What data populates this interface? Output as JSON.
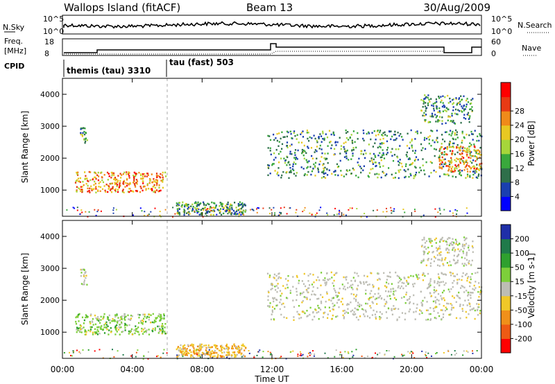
{
  "header": {
    "station": "Wallops Island (fitACF)",
    "beam": "Beam 13",
    "date": "30/Aug/2009"
  },
  "top_panels": {
    "nsky_label": "N.Sky",
    "nsky_ticks": [
      "10^5",
      "10^0"
    ],
    "nsearch_label": "N.Search",
    "freq_label_line1": "Freq.",
    "freq_label_line2": "[MHz]",
    "freq_ticks": [
      "18",
      "8"
    ],
    "nave_ticks": [
      "60",
      "0"
    ],
    "nave_label": "Nave",
    "cpid_label": "CPID",
    "cpid_segments": [
      "themis (tau) 3310",
      "tau (fast) 503"
    ]
  },
  "chart_data": [
    {
      "type": "heatmap",
      "name": "power",
      "ylabel": "Slant Range [km]",
      "yticks": [
        "1000",
        "2000",
        "3000",
        "4000"
      ],
      "ylim": [
        180,
        4500
      ],
      "xlim": [
        0,
        24
      ],
      "colorbar": {
        "label": "Power [dB]",
        "ticks": [
          "4",
          "8",
          "12",
          "16",
          "20",
          "24",
          "28"
        ],
        "colors": [
          "#0000ff",
          "#1a3fb0",
          "#2e6f4a",
          "#39a83c",
          "#a6d63a",
          "#e8c822",
          "#f08a1a",
          "#e83a14",
          "#ff0000"
        ]
      },
      "regions": [
        {
          "t0": 0.7,
          "t1": 5.9,
          "r0": 950,
          "r1": 1600,
          "level": "high"
        },
        {
          "t0": 1.0,
          "t1": 1.4,
          "r0": 2500,
          "r1": 3000,
          "level": "mid"
        },
        {
          "t0": 6.5,
          "t1": 10.5,
          "r0": 250,
          "r1": 650,
          "level": "mid"
        },
        {
          "t0": 11.7,
          "t1": 24,
          "r0": 1400,
          "r1": 2900,
          "level": "mid"
        },
        {
          "t0": 21.5,
          "t1": 24,
          "r0": 1600,
          "r1": 2400,
          "level": "high"
        },
        {
          "t0": 20.5,
          "t1": 23.5,
          "r0": 3100,
          "r1": 4000,
          "level": "mid"
        }
      ]
    },
    {
      "type": "heatmap",
      "name": "velocity",
      "ylabel": "Slant Range [km]",
      "yticks": [
        "1000",
        "2000",
        "3000",
        "4000"
      ],
      "ylim": [
        180,
        4500
      ],
      "xlim": [
        0,
        24
      ],
      "xticks": [
        "00:00",
        "04:00",
        "08:00",
        "12:00",
        "16:00",
        "20:00",
        "00:00"
      ],
      "xlabel": "Time UT",
      "colorbar": {
        "label": "Velocity [m s-1]",
        "ticks": [
          "200",
          "100",
          "50",
          "15",
          "-15",
          "-50",
          "-100",
          "-200"
        ],
        "colors": [
          "#1f2fa8",
          "#1f7a4a",
          "#2ea02e",
          "#7dcf3a",
          "#bdbdb4",
          "#f0c828",
          "#f0901a",
          "#ee5a14",
          "#ff0000"
        ]
      },
      "regions": [
        {
          "t0": 0.7,
          "t1": 5.9,
          "r0": 950,
          "r1": 1600,
          "level": "green"
        },
        {
          "t0": 1.0,
          "t1": 1.4,
          "r0": 2500,
          "r1": 3000,
          "level": "gray"
        },
        {
          "t0": 6.5,
          "t1": 10.5,
          "r0": 250,
          "r1": 650,
          "level": "orange"
        },
        {
          "t0": 11.7,
          "t1": 24,
          "r0": 1400,
          "r1": 2900,
          "level": "gray"
        },
        {
          "t0": 20.5,
          "t1": 23.5,
          "r0": 3100,
          "r1": 4000,
          "level": "gray"
        }
      ]
    }
  ]
}
